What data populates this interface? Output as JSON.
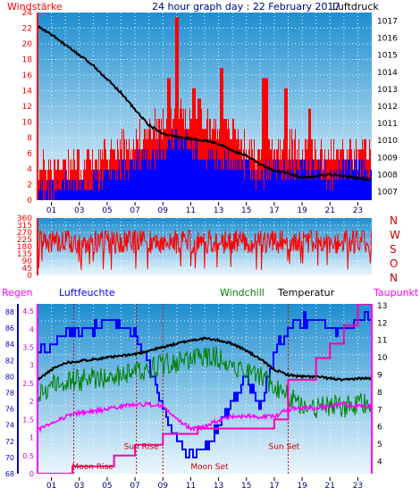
{
  "header": {
    "title": "24 hour graph day : 22 February 2017",
    "left_label": "Windstärke",
    "right_label": "Luftdruck"
  },
  "colors": {
    "wind_red": "#ff0000",
    "gust_blue": "#0000ff",
    "pressure_black": "#000000",
    "humidity_blue": "#0000ff",
    "windchill_green": "#008000",
    "temperature_black": "#000000",
    "dewpoint_magenta": "#ff00ff",
    "rain_magenta": "#ff00aa",
    "sun_moon_red": "#cc0000",
    "left_axis_navy": "#000080",
    "plot_top": "#1e8fd0",
    "plot_bottom": "#eaf6fd"
  },
  "chart_data": [
    {
      "type": "line",
      "title": "24 hour graph day : 22 February 2017",
      "series": [
        {
          "name": "Windstärke"
        },
        {
          "name": "Luftdruck"
        }
      ],
      "ylabel_left": "Windstärke",
      "ylabel_right": "Luftdruck",
      "ylim_left": [
        0,
        24
      ],
      "ylim_right": [
        1006.5,
        1017.5
      ],
      "y_ticks_left": [
        "0",
        "2",
        "4",
        "6",
        "8",
        "10",
        "12",
        "14",
        "16",
        "18",
        "20",
        "22",
        "24"
      ],
      "y_ticks_right": [
        "1007",
        "1008",
        "1009",
        "1010",
        "1011",
        "1012",
        "1013",
        "1014",
        "1015",
        "1016",
        "1017"
      ],
      "x_ticks": [
        "01",
        "03",
        "05",
        "07",
        "09",
        "11",
        "13",
        "15",
        "17",
        "19",
        "21",
        "23"
      ],
      "xlim": [
        0,
        24
      ],
      "pressure": {
        "x": [
          0,
          1,
          2,
          3,
          4,
          5,
          6,
          7,
          8,
          9,
          10,
          11,
          12,
          13,
          14,
          15,
          16,
          17,
          18,
          19,
          20,
          21,
          22,
          23,
          24
        ],
        "y": [
          1016.7,
          1016.2,
          1015.6,
          1015.0,
          1014.4,
          1013.6,
          1012.8,
          1011.8,
          1010.9,
          1010.4,
          1010.2,
          1010.1,
          1010.0,
          1009.8,
          1009.4,
          1009.1,
          1008.6,
          1008.2,
          1008.1,
          1007.8,
          1007.9,
          1008.0,
          1007.9,
          1007.8,
          1007.7
        ]
      },
      "wind_base": {
        "x": [
          0,
          2,
          4,
          6,
          8,
          9,
          10,
          11,
          12,
          13,
          14,
          15,
          16,
          17,
          18,
          19,
          20,
          21,
          22,
          23,
          24
        ],
        "y": [
          3,
          4,
          4,
          6,
          8,
          9,
          11,
          10,
          9,
          8,
          8,
          6,
          5,
          6,
          6,
          6,
          5,
          5,
          5,
          5,
          5
        ]
      },
      "wind_spikes": {
        "x": [
          9.4,
          10.0,
          11.2,
          11.6,
          13.2,
          16.2,
          16.4,
          17.8,
          19.5
        ],
        "y": [
          16,
          23,
          14,
          13,
          17,
          15,
          16,
          14,
          12
        ]
      },
      "gust_blue": {
        "x": [
          0,
          2,
          4,
          6,
          8,
          9,
          10,
          11,
          12,
          13,
          14,
          15,
          16,
          17,
          18,
          19,
          20,
          21,
          22,
          23,
          24
        ],
        "y": [
          1,
          2,
          2,
          4,
          5,
          6,
          8,
          7,
          6,
          5,
          5,
          4,
          3,
          4,
          4,
          4,
          4,
          3,
          4,
          4,
          3
        ]
      },
      "grid": true
    },
    {
      "type": "line",
      "series": [
        {
          "name": "N W S O N"
        }
      ],
      "ylim": [
        0,
        360
      ],
      "y_ticks": [
        "0",
        "45",
        "90",
        "135",
        "180",
        "225",
        "270",
        "315",
        "360"
      ],
      "right_labels": [
        "N",
        "W",
        "S",
        "O",
        "N"
      ],
      "x_ticks": [
        "01",
        "03",
        "05",
        "07",
        "09",
        "11",
        "13",
        "15",
        "17",
        "19",
        "21",
        "23"
      ],
      "xlim": [
        0,
        24
      ],
      "direction_center": 210,
      "direction_spread": 75,
      "grid": true
    },
    {
      "type": "line",
      "series": [
        {
          "name": "Regen"
        },
        {
          "name": "Luftfeuchte"
        },
        {
          "name": "Windchill"
        },
        {
          "name": "Temperatur"
        },
        {
          "name": "Taupunkt"
        }
      ],
      "ylim_left_rain": [
        0,
        4.7
      ],
      "y_ticks_left_rain": [
        "0",
        "0.5",
        "1",
        "1.5",
        "2",
        "2.5",
        "3",
        "3.5",
        "4",
        "4.5"
      ],
      "ylim_left_humidity": [
        68,
        89
      ],
      "y_ticks_left_humidity": [
        "68",
        "70",
        "72",
        "74",
        "76",
        "78",
        "80",
        "82",
        "84",
        "86",
        "88"
      ],
      "ylim_right": [
        3.3,
        13.1
      ],
      "y_ticks_right": [
        "4",
        "5",
        "6",
        "7",
        "8",
        "9",
        "10",
        "11",
        "12",
        "13"
      ],
      "x_ticks": [
        "01",
        "03",
        "05",
        "07",
        "09",
        "11",
        "13",
        "15",
        "17",
        "19",
        "21",
        "23"
      ],
      "xlim": [
        0,
        24
      ],
      "temperature": {
        "x": [
          0,
          1,
          2,
          3,
          4,
          5,
          6,
          7,
          8,
          9,
          10,
          11,
          12,
          13,
          14,
          15,
          16,
          17,
          18,
          19,
          20,
          21,
          22,
          23,
          24
        ],
        "y": [
          8.7,
          9.3,
          9.7,
          9.8,
          9.9,
          10.0,
          10.1,
          10.2,
          10.4,
          10.6,
          10.8,
          11.0,
          11.1,
          11.0,
          10.8,
          10.4,
          9.9,
          9.3,
          9.0,
          8.9,
          8.9,
          8.8,
          8.7,
          8.8,
          8.8
        ]
      },
      "windchill": {
        "x": [
          0,
          1,
          2,
          3,
          4,
          5,
          6,
          7,
          8,
          9,
          10,
          11,
          12,
          13,
          14,
          15,
          16,
          17,
          18,
          19,
          20,
          21,
          22,
          23,
          24
        ],
        "y": [
          7.9,
          8.4,
          8.6,
          8.7,
          8.8,
          8.9,
          9.0,
          9.2,
          9.4,
          9.6,
          9.7,
          9.9,
          10.1,
          10.0,
          9.6,
          9.2,
          8.9,
          8.4,
          7.8,
          7.3,
          7.1,
          7.2,
          7.1,
          7.3,
          7.3
        ]
      },
      "dewpoint": {
        "x": [
          0,
          1,
          2,
          3,
          4,
          5,
          6,
          7,
          8,
          9,
          10,
          11,
          12,
          13,
          14,
          15,
          16,
          17,
          18,
          19,
          20,
          21,
          22,
          23,
          24
        ],
        "y": [
          5.8,
          6.2,
          6.6,
          6.8,
          6.9,
          7.0,
          7.2,
          7.3,
          7.3,
          7.2,
          6.4,
          5.9,
          6.0,
          6.4,
          6.6,
          6.6,
          6.6,
          6.6,
          7.0,
          7.1,
          7.1,
          7.2,
          7.3,
          7.2,
          7.2
        ]
      },
      "humidity": {
        "x": [
          0,
          1,
          2,
          3,
          4,
          5,
          6,
          7,
          8,
          9,
          10,
          11,
          12,
          13,
          14,
          15,
          16,
          17,
          18,
          19,
          20,
          21,
          22,
          23,
          23.5,
          24
        ],
        "y": [
          83,
          84,
          85,
          86,
          86,
          87,
          86,
          85,
          81,
          76,
          72,
          70,
          71,
          74,
          77,
          80,
          76,
          83,
          86,
          87,
          87,
          86,
          86,
          87,
          88,
          87
        ]
      },
      "rain": {
        "x": [
          0,
          2.5,
          2.5,
          5.5,
          5.5,
          7,
          7,
          9,
          9,
          11.5,
          11.5,
          17,
          17,
          18,
          18,
          20,
          20,
          21,
          21,
          22,
          22,
          23,
          23,
          24
        ],
        "y": [
          0,
          0,
          0.2,
          0.2,
          0.5,
          0.5,
          0.8,
          0.8,
          1.1,
          1.1,
          1.25,
          1.25,
          1.5,
          1.5,
          2.6,
          2.6,
          3.2,
          3.2,
          3.6,
          3.6,
          4.1,
          4.1,
          4.7,
          4.7
        ]
      },
      "annotations": [
        "Sun Rise",
        "Sun Set",
        "Moon Rise",
        "Moon Set"
      ],
      "grid": true
    }
  ],
  "panel2": {
    "right_labels": [
      "N",
      "W",
      "S",
      "O",
      "N"
    ]
  },
  "panel3": {
    "legend": {
      "regen": "Regen",
      "luftfeuchte": "Luftfeuchte",
      "windchill": "Windchill",
      "temperatur": "Temperatur",
      "taupunkt": "Taupunkt"
    },
    "events": {
      "sun_rise": "Sun Rise",
      "sun_set": "Sun Set",
      "moon_rise": "Moon Rise",
      "moon_set": "Moon Set"
    }
  }
}
